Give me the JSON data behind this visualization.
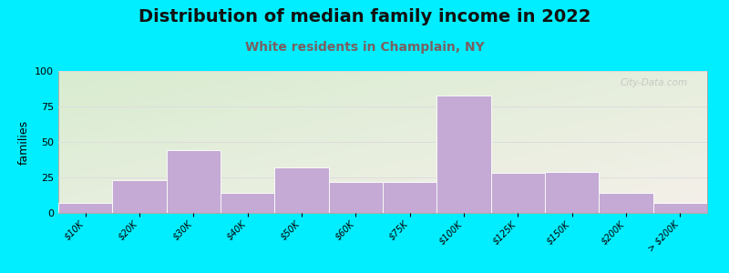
{
  "title": "Distribution of median family income in 2022",
  "subtitle": "White residents in Champlain, NY",
  "ylabel": "families",
  "categories": [
    "$10K",
    "$20K",
    "$30K",
    "$40K",
    "$50K",
    "$60K",
    "$75K",
    "$100K",
    "$125K",
    "$150K",
    "$200K",
    "> $200K"
  ],
  "values": [
    7,
    23,
    44,
    14,
    32,
    22,
    22,
    83,
    28,
    29,
    14,
    7
  ],
  "bar_color": "#c4aad4",
  "ylim": [
    0,
    100
  ],
  "yticks": [
    0,
    25,
    50,
    75,
    100
  ],
  "background_outer": "#00eeff",
  "background_inner_top_left": "#d8ecd0",
  "background_inner_bottom_right": "#f5f0ea",
  "grid_color": "#dddddd",
  "title_fontsize": 14,
  "subtitle_fontsize": 10,
  "subtitle_color": "#7a6060",
  "ylabel_fontsize": 9,
  "tick_fontsize": 7,
  "watermark": "City-Data.com"
}
